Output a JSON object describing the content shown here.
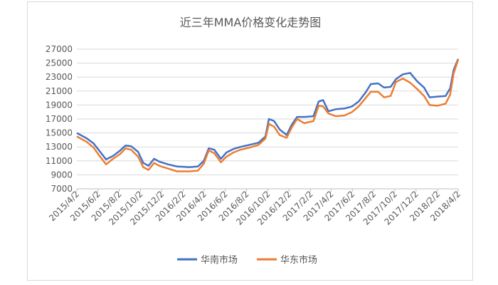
{
  "chart_data": {
    "type": "line",
    "title": "近三年MMA价格变化走势图",
    "xlabel": "",
    "ylabel": "",
    "ylim": [
      7000,
      27000
    ],
    "yticks": [
      7000,
      9000,
      11000,
      13000,
      15000,
      17000,
      19000,
      21000,
      23000,
      25000,
      27000
    ],
    "xticks": [
      "2015/4/2",
      "2015/6/2",
      "2015/8/2",
      "2015/10/2",
      "2015/12/2",
      "2016/2/2",
      "2016/4/2",
      "2016/6/2",
      "2016/8/2",
      "2016/10/2",
      "2016/12/2",
      "2017/2/2",
      "2017/4/2",
      "2017/6/2",
      "2017/8/2",
      "2017/10/2",
      "2017/12/2",
      "2018/2/2",
      "2018/4/2"
    ],
    "grid": "horizontal",
    "legend_position": "bottom",
    "series": [
      {
        "name": "华南市场",
        "color": "#4472c4",
        "points": [
          [
            "2015/4/2",
            15000
          ],
          [
            "2015/5/1",
            14200
          ],
          [
            "2015/5/20",
            13500
          ],
          [
            "2015/6/5",
            12500
          ],
          [
            "2015/6/25",
            11200
          ],
          [
            "2015/7/15",
            11700
          ],
          [
            "2015/8/5",
            12500
          ],
          [
            "2015/8/20",
            13200
          ],
          [
            "2015/9/5",
            13100
          ],
          [
            "2015/9/25",
            12300
          ],
          [
            "2015/10/10",
            10700
          ],
          [
            "2015/10/25",
            10300
          ],
          [
            "2015/11/10",
            11300
          ],
          [
            "2015/11/25",
            10900
          ],
          [
            "2015/12/20",
            10500
          ],
          [
            "2016/1/15",
            10200
          ],
          [
            "2016/2/20",
            10100
          ],
          [
            "2016/3/15",
            10200
          ],
          [
            "2016/4/1",
            11000
          ],
          [
            "2016/4/15",
            12800
          ],
          [
            "2016/5/1",
            12600
          ],
          [
            "2016/5/20",
            11300
          ],
          [
            "2016/6/5",
            12200
          ],
          [
            "2016/6/25",
            12700
          ],
          [
            "2016/7/15",
            13000
          ],
          [
            "2016/8/10",
            13300
          ],
          [
            "2016/9/5",
            13600
          ],
          [
            "2016/9/25",
            14500
          ],
          [
            "2016/10/5",
            17000
          ],
          [
            "2016/10/20",
            16700
          ],
          [
            "2016/11/5",
            15500
          ],
          [
            "2016/11/25",
            14700
          ],
          [
            "2016/12/10",
            16200
          ],
          [
            "2016/12/25",
            17300
          ],
          [
            "2017/1/15",
            17300
          ],
          [
            "2017/2/10",
            17400
          ],
          [
            "2017/2/25",
            19500
          ],
          [
            "2017/3/10",
            19700
          ],
          [
            "2017/3/25",
            18100
          ],
          [
            "2017/4/15",
            18400
          ],
          [
            "2017/5/10",
            18500
          ],
          [
            "2017/6/1",
            18800
          ],
          [
            "2017/6/20",
            19500
          ],
          [
            "2017/7/10",
            20800
          ],
          [
            "2017/7/25",
            22000
          ],
          [
            "2017/8/15",
            22100
          ],
          [
            "2017/9/1",
            21500
          ],
          [
            "2017/9/20",
            21600
          ],
          [
            "2017/10/5",
            22700
          ],
          [
            "2017/10/25",
            23400
          ],
          [
            "2017/11/15",
            23600
          ],
          [
            "2017/12/5",
            22400
          ],
          [
            "2017/12/25",
            21500
          ],
          [
            "2018/1/10",
            20100
          ],
          [
            "2018/2/1",
            20200
          ],
          [
            "2018/2/25",
            20300
          ],
          [
            "2018/3/10",
            21400
          ],
          [
            "2018/3/20",
            24000
          ],
          [
            "2018/4/2",
            25600
          ]
        ]
      },
      {
        "name": "华东市场",
        "color": "#ed7d31",
        "points": [
          [
            "2015/4/2",
            14500
          ],
          [
            "2015/5/1",
            13700
          ],
          [
            "2015/5/20",
            12900
          ],
          [
            "2015/6/5",
            11800
          ],
          [
            "2015/6/25",
            10500
          ],
          [
            "2015/7/15",
            11300
          ],
          [
            "2015/8/5",
            12000
          ],
          [
            "2015/8/20",
            12800
          ],
          [
            "2015/9/5",
            12600
          ],
          [
            "2015/9/25",
            11600
          ],
          [
            "2015/10/10",
            10100
          ],
          [
            "2015/10/25",
            9700
          ],
          [
            "2015/11/10",
            10700
          ],
          [
            "2015/11/25",
            10300
          ],
          [
            "2015/12/20",
            9900
          ],
          [
            "2016/1/15",
            9500
          ],
          [
            "2016/2/20",
            9500
          ],
          [
            "2016/3/15",
            9600
          ],
          [
            "2016/4/1",
            10600
          ],
          [
            "2016/4/15",
            12500
          ],
          [
            "2016/5/1",
            12100
          ],
          [
            "2016/5/20",
            10800
          ],
          [
            "2016/6/5",
            11600
          ],
          [
            "2016/6/25",
            12200
          ],
          [
            "2016/7/15",
            12600
          ],
          [
            "2016/8/10",
            12900
          ],
          [
            "2016/9/5",
            13300
          ],
          [
            "2016/9/25",
            14200
          ],
          [
            "2016/10/5",
            16300
          ],
          [
            "2016/10/20",
            15900
          ],
          [
            "2016/11/5",
            14700
          ],
          [
            "2016/11/25",
            14300
          ],
          [
            "2016/12/10",
            15800
          ],
          [
            "2016/12/25",
            17000
          ],
          [
            "2017/1/15",
            16400
          ],
          [
            "2017/2/10",
            16700
          ],
          [
            "2017/2/25",
            18900
          ],
          [
            "2017/3/10",
            18800
          ],
          [
            "2017/3/25",
            17800
          ],
          [
            "2017/4/15",
            17400
          ],
          [
            "2017/5/10",
            17500
          ],
          [
            "2017/6/1",
            18000
          ],
          [
            "2017/6/20",
            18800
          ],
          [
            "2017/7/10",
            20000
          ],
          [
            "2017/7/25",
            20900
          ],
          [
            "2017/8/15",
            20900
          ],
          [
            "2017/9/1",
            20100
          ],
          [
            "2017/9/20",
            20300
          ],
          [
            "2017/10/5",
            22300
          ],
          [
            "2017/10/25",
            22800
          ],
          [
            "2017/11/15",
            22200
          ],
          [
            "2017/12/5",
            21300
          ],
          [
            "2017/12/25",
            20300
          ],
          [
            "2018/1/10",
            19000
          ],
          [
            "2018/2/1",
            18900
          ],
          [
            "2018/2/25",
            19200
          ],
          [
            "2018/3/10",
            20500
          ],
          [
            "2018/3/20",
            23500
          ],
          [
            "2018/4/2",
            25500
          ]
        ]
      }
    ]
  }
}
